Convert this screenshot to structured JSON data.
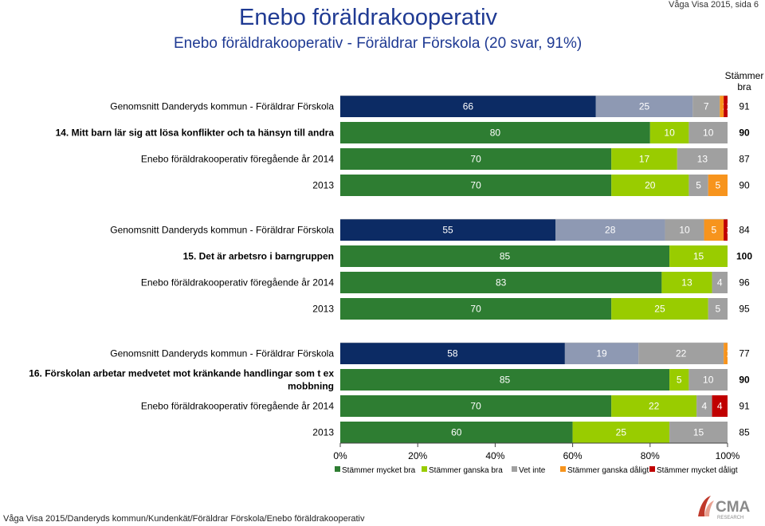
{
  "header": {
    "title": "Enebo föräldrakooperativ",
    "subtitle": "Enebo föräldrakooperativ - Föräldrar Förskola (20 svar, 91%)",
    "page_ref": "Våga Visa 2015, sida 6"
  },
  "footer": {
    "path": "Våga Visa 2015/Danderyds kommun/Kundenkät/Föräldrar Förskola/Enebo föräldrakooperativ",
    "logo_text": "CMA",
    "logo_subtext": "RESEARCH"
  },
  "colors": {
    "title": "#1f3a93",
    "benchmark_dark": "#0c2b64",
    "benchmark_mid": "#8e99b3",
    "stammer_mycket_bra": "#2e7d32",
    "stammer_ganska_bra": "#99cc00",
    "vet_inte": "#a0a0a0",
    "stammer_ganska_daligt": "#f7941d",
    "stammer_mycket_daligt": "#c00000"
  },
  "chart_data": {
    "type": "bar",
    "orientation": "horizontal",
    "stacked": true,
    "xlim": [
      0,
      100
    ],
    "x_ticks": [
      "0%",
      "20%",
      "40%",
      "60%",
      "80%",
      "100%"
    ],
    "right_column_header": [
      "Stämmer",
      "bra"
    ],
    "legend": [
      "Stämmer mycket bra",
      "Stämmer ganska bra",
      "Vet inte",
      "Stämmer ganska dåligt",
      "Stämmer mycket dåligt"
    ],
    "groups": [
      {
        "question": [
          "14. Mitt barn lär sig att lösa konflikter och ta hänsyn till andra"
        ],
        "rows": [
          {
            "label": "Genomsnitt Danderyds kommun - Föräldrar Förskola",
            "type": "benchmark",
            "values": [
              66,
              25,
              7,
              1,
              1
            ],
            "total": "91",
            "bold": false
          },
          {
            "label": "",
            "type": "current",
            "values": [
              80,
              10,
              10,
              0,
              0
            ],
            "total": "90",
            "bold": true
          },
          {
            "label": "Enebo föräldrakooperativ föregående år 2014",
            "type": "current",
            "values": [
              70,
              17,
              13,
              0,
              0
            ],
            "total": "87",
            "bold": false
          },
          {
            "label": "2013",
            "type": "current",
            "values": [
              70,
              20,
              5,
              5,
              0
            ],
            "total": "90",
            "bold": false
          }
        ]
      },
      {
        "question": [
          "15. Det är arbetsro i barngruppen"
        ],
        "rows": [
          {
            "label": "Genomsnitt Danderyds kommun - Föräldrar Förskola",
            "type": "benchmark",
            "values": [
              55,
              28,
              10,
              5,
              1
            ],
            "total": "84",
            "bold": false
          },
          {
            "label": "",
            "type": "current",
            "values": [
              85,
              15,
              0,
              0,
              0
            ],
            "total": "100",
            "bold": true
          },
          {
            "label": "Enebo föräldrakooperativ föregående år 2014",
            "type": "current",
            "values": [
              83,
              13,
              4,
              0,
              0
            ],
            "total": "96",
            "bold": false
          },
          {
            "label": "2013",
            "type": "current",
            "values": [
              70,
              25,
              5,
              0,
              0
            ],
            "total": "95",
            "bold": false
          }
        ]
      },
      {
        "question": [
          "16. Förskolan arbetar medvetet mot kränkande handlingar som t ex",
          "mobbning"
        ],
        "rows": [
          {
            "label": "Genomsnitt Danderyds kommun - Föräldrar Förskola",
            "type": "benchmark",
            "values": [
              58,
              19,
              22,
              1,
              0
            ],
            "total": "77",
            "bold": false
          },
          {
            "label": "",
            "type": "current",
            "values": [
              85,
              5,
              10,
              0,
              0
            ],
            "total": "90",
            "bold": true
          },
          {
            "label": "Enebo föräldrakooperativ föregående år 2014",
            "type": "current",
            "values": [
              70,
              22,
              4,
              0,
              4
            ],
            "total": "91",
            "bold": false
          },
          {
            "label": "2013",
            "type": "current",
            "values": [
              60,
              25,
              15,
              0,
              0
            ],
            "total": "85",
            "bold": false
          }
        ]
      }
    ]
  }
}
